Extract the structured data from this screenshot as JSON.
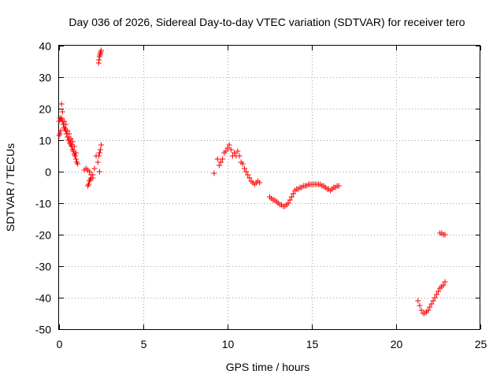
{
  "chart_data": {
    "type": "scatter",
    "title": "Day 036 of 2026, Sidereal Day-to-day VTEC variation (SDTVAR) for receiver tero",
    "xlabel": "GPS time / hours",
    "ylabel": "SDTVAR / TECUs",
    "xlim": [
      0,
      25
    ],
    "ylim": [
      -50,
      40
    ],
    "x_ticks": [
      0,
      5,
      10,
      15,
      20,
      25
    ],
    "y_ticks": [
      -50,
      -40,
      -30,
      -20,
      -10,
      0,
      10,
      20,
      30,
      40
    ],
    "grid": true,
    "marker": "plus",
    "series_color": "#ff0000",
    "series": [
      {
        "name": "segment-1",
        "x": [
          0.0,
          0.05,
          0.1,
          0.15,
          0.2,
          0.25,
          0.3,
          0.35,
          0.4,
          0.45,
          0.5,
          0.55,
          0.6,
          0.65,
          0.7,
          0.75,
          0.8,
          0.85,
          0.9,
          0.95,
          1.0,
          1.05,
          1.1
        ],
        "y": [
          16,
          17,
          16.5,
          17,
          16,
          15,
          14,
          13.5,
          13,
          12,
          11,
          10,
          10,
          9,
          8.5,
          8,
          7,
          6.5,
          5.5,
          5,
          4,
          3,
          2.5
        ]
      },
      {
        "name": "segment-1b",
        "x": [
          0.0,
          0.05,
          0.1,
          0.15,
          0.2,
          0.3,
          0.4,
          0.5,
          0.6,
          0.7,
          0.8,
          0.9,
          1.0
        ],
        "y": [
          11.5,
          12,
          13,
          21.5,
          19,
          16,
          15,
          13,
          12,
          10.5,
          9.5,
          8,
          6
        ]
      },
      {
        "name": "segment-2",
        "x": [
          1.5,
          1.6,
          1.7,
          1.8,
          1.9,
          2.0,
          2.1,
          2.2,
          2.3,
          2.4
        ],
        "y": [
          0.5,
          1,
          0.5,
          0,
          -1,
          -2,
          1,
          5,
          3,
          0
        ]
      },
      {
        "name": "segment-2b",
        "x": [
          1.7,
          1.75,
          1.8,
          1.85,
          1.9,
          2.0
        ],
        "y": [
          -4.5,
          -4,
          -3,
          -2.5,
          -2,
          -1
        ]
      },
      {
        "name": "segment-3",
        "x": [
          2.35,
          2.37,
          2.4,
          2.42,
          2.45,
          2.47,
          2.5
        ],
        "y": [
          34.5,
          35.5,
          36.5,
          37,
          37.5,
          38,
          38.5
        ]
      },
      {
        "name": "segment-3b",
        "x": [
          2.35,
          2.4,
          2.45,
          2.5
        ],
        "y": [
          5,
          6,
          7,
          8.5
        ]
      },
      {
        "name": "segment-4",
        "x": [
          9.2,
          9.4,
          9.5,
          9.6,
          9.7,
          9.8,
          9.9,
          10.0,
          10.1,
          10.2,
          10.3,
          10.4,
          10.5,
          10.6,
          10.7,
          10.8,
          10.9,
          11.0,
          11.1,
          11.2,
          11.3,
          11.4,
          11.5,
          11.6,
          11.7,
          11.8,
          11.9
        ],
        "y": [
          -0.5,
          4,
          2,
          3,
          4,
          6,
          6.5,
          7.5,
          8.5,
          7,
          5,
          6,
          5,
          6.5,
          5,
          3,
          2.5,
          1,
          0,
          -1,
          -2,
          -3,
          -3.5,
          -4,
          -3.5,
          -3,
          -3.5
        ]
      },
      {
        "name": "segment-5",
        "x": [
          12.5,
          12.6,
          12.7,
          12.8,
          12.9,
          13.0,
          13.1,
          13.2,
          13.3,
          13.4,
          13.5,
          13.6,
          13.7,
          13.8,
          13.9,
          14.0,
          14.1,
          14.2,
          14.3,
          14.4,
          14.5,
          14.6,
          14.7,
          14.8,
          14.9,
          15.0,
          15.1,
          15.2,
          15.3,
          15.4,
          15.5,
          15.6,
          15.7,
          15.8,
          15.9,
          16.0,
          16.1,
          16.2,
          16.3,
          16.4,
          16.5,
          16.6
        ],
        "y": [
          -8,
          -8.5,
          -9,
          -9,
          -9.5,
          -10,
          -10.5,
          -10.5,
          -11,
          -11,
          -10.5,
          -10,
          -9,
          -8,
          -7,
          -6,
          -5.5,
          -5.5,
          -5,
          -5,
          -4.5,
          -4.5,
          -4.5,
          -4,
          -4,
          -4,
          -4,
          -4,
          -4,
          -4,
          -4,
          -4.5,
          -4.5,
          -5,
          -5.5,
          -5.5,
          -6,
          -5.5,
          -5,
          -5,
          -4.5,
          -4.5
        ]
      },
      {
        "name": "segment-6",
        "x": [
          21.3,
          21.4,
          21.5,
          21.6,
          21.7,
          21.8,
          21.9,
          22.0,
          22.1,
          22.2,
          22.3,
          22.4,
          22.5,
          22.6,
          22.7,
          22.8,
          22.9
        ],
        "y": [
          -41,
          -42.5,
          -44,
          -45,
          -45,
          -44.5,
          -44,
          -43,
          -42,
          -41,
          -40,
          -39,
          -38,
          -37,
          -36.5,
          -36,
          -35
        ]
      },
      {
        "name": "segment-7",
        "x": [
          22.6,
          22.7,
          22.8,
          22.9
        ],
        "y": [
          -19.5,
          -19.5,
          -20,
          -20
        ]
      }
    ]
  }
}
